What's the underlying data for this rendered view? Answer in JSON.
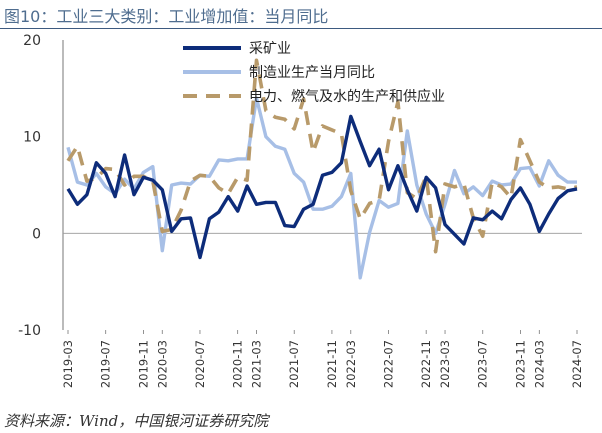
{
  "header": {
    "title": "图10：工业三大类别：工业增加值：当月同比"
  },
  "footer": {
    "source": "资料来源：Wind，中国银河证券研究院"
  },
  "chart_data": {
    "type": "line",
    "title": "图10：工业三大类别：工业增加值：当月同比",
    "xlabel": "",
    "ylabel": "",
    "ylim": [
      -10,
      20
    ],
    "yticks": [
      "20",
      "10",
      "0",
      "-10"
    ],
    "ytick_values": [
      20,
      10,
      0,
      -10
    ],
    "legend_position": "top-center",
    "x": [
      "2019-03",
      "2019-04",
      "2019-05",
      "2019-06",
      "2019-07",
      "2019-08",
      "2019-09",
      "2019-10",
      "2019-11",
      "2019-12",
      "2020-03",
      "2020-04",
      "2020-05",
      "2020-06",
      "2020-07",
      "2020-08",
      "2020-09",
      "2020-10",
      "2020-11",
      "2020-12",
      "2021-03",
      "2021-04",
      "2021-05",
      "2021-06",
      "2021-07",
      "2021-08",
      "2021-09",
      "2021-10",
      "2021-11",
      "2021-12",
      "2022-03",
      "2022-04",
      "2022-05",
      "2022-06",
      "2022-07",
      "2022-08",
      "2022-09",
      "2022-10",
      "2022-11",
      "2022-12",
      "2023-03",
      "2023-04",
      "2023-05",
      "2023-06",
      "2023-07",
      "2023-08",
      "2023-09",
      "2023-10",
      "2023-11",
      "2023-12",
      "2024-03",
      "2024-04",
      "2024-05",
      "2024-06",
      "2024-07"
    ],
    "xtick_labels": [
      "2019-03",
      "2019-07",
      "2019-11",
      "2020-03",
      "2020-07",
      "2020-11",
      "2021-03",
      "2021-07",
      "2021-11",
      "2022-03",
      "2022-07",
      "2022-11",
      "2023-03",
      "2023-07",
      "2023-11",
      "2024-03",
      "2024-07"
    ],
    "series": [
      {
        "name": "采矿业",
        "color": "#0d2c7a",
        "dash": "solid",
        "values": [
          4.6,
          3.0,
          4.0,
          7.3,
          6.2,
          3.8,
          8.1,
          4.0,
          5.8,
          5.5,
          4.5,
          0.2,
          1.5,
          1.6,
          -2.5,
          1.5,
          2.2,
          3.8,
          2.3,
          4.9,
          3.0,
          3.2,
          3.2,
          0.8,
          0.7,
          2.5,
          3.0,
          6.0,
          6.3,
          7.3,
          12.1,
          9.5,
          7.0,
          8.7,
          4.5,
          7.0,
          4.5,
          2.3,
          5.8,
          4.7,
          0.9,
          -0.1,
          -1.1,
          1.6,
          1.4,
          2.3,
          1.5,
          3.5,
          4.7,
          3.0,
          0.2,
          2.0,
          3.6,
          4.4,
          4.6
        ]
      },
      {
        "name": "制造业生产当月同比",
        "color": "#a7bfe6",
        "dash": "solid",
        "values": [
          8.9,
          5.3,
          5.0,
          6.2,
          4.8,
          4.1,
          5.6,
          4.6,
          6.3,
          6.9,
          -1.8,
          5.0,
          5.2,
          5.1,
          6.0,
          5.9,
          7.6,
          7.5,
          7.7,
          7.7,
          14.0,
          10.0,
          9.0,
          8.7,
          6.2,
          5.3,
          2.5,
          2.5,
          2.8,
          3.8,
          6.2,
          -4.6,
          0.1,
          3.4,
          2.7,
          3.1,
          10.6,
          5.0,
          2.0,
          0.0,
          3.0,
          6.5,
          4.1,
          4.8,
          3.9,
          5.4,
          5.0,
          5.1,
          6.7,
          6.8,
          4.9,
          7.5,
          6.0,
          5.3,
          5.3
        ]
      },
      {
        "name": "电力、燃气及水的生产和供应业",
        "color": "#b89a6a",
        "dash": "dashed",
        "values": [
          7.5,
          9.0,
          5.4,
          5.7,
          6.7,
          6.6,
          5.0,
          5.9,
          5.9,
          5.4,
          0.2,
          0.4,
          2.4,
          5.4,
          6.0,
          5.9,
          4.7,
          4.1,
          5.8,
          5.5,
          17.9,
          12.7,
          12.0,
          11.8,
          10.8,
          13.9,
          8.4,
          11.1,
          10.7,
          10.3,
          4.4,
          1.5,
          3.1,
          3.4,
          9.5,
          13.6,
          4.2,
          3.6,
          5.9,
          -1.9,
          5.1,
          4.8,
          5.1,
          1.6,
          -0.3,
          5.3,
          4.8,
          3.7,
          9.7,
          7.5,
          5.3,
          4.7,
          4.8,
          4.6,
          4.8
        ]
      }
    ]
  }
}
